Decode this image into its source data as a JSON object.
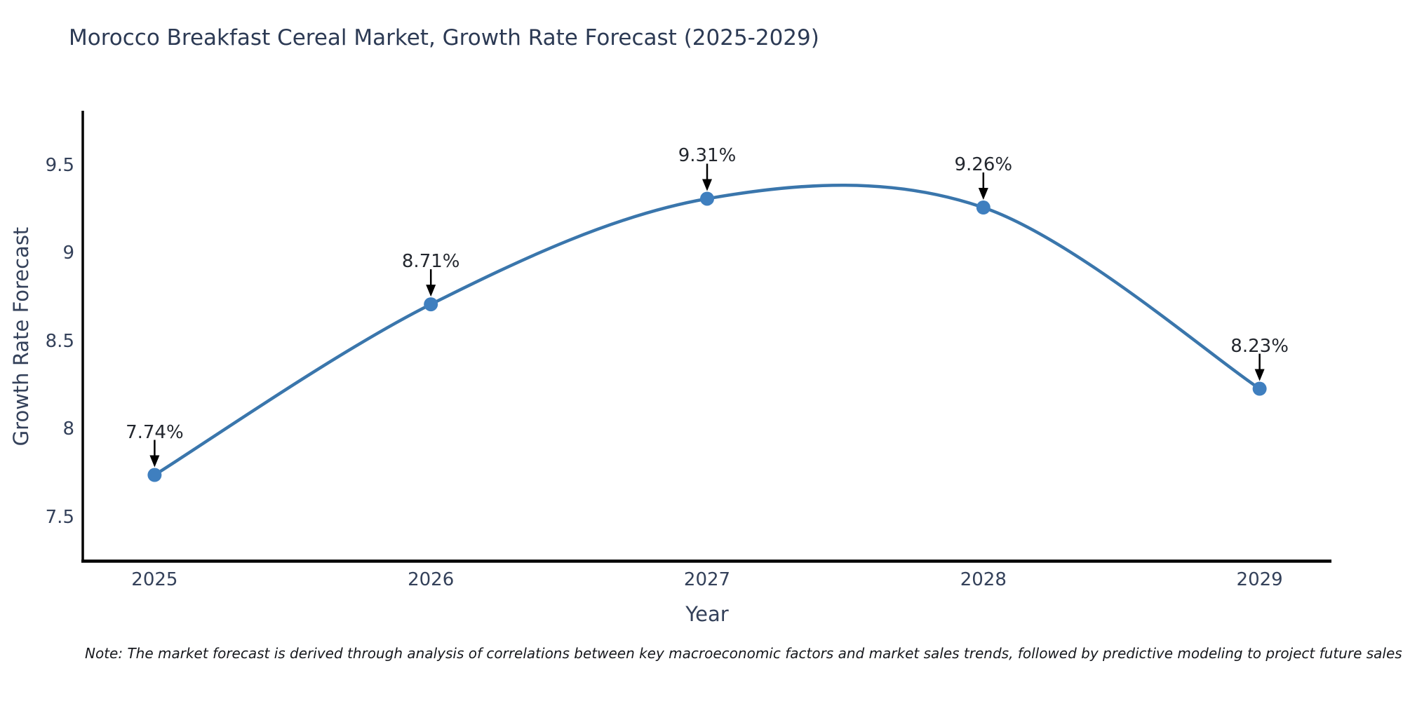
{
  "figure": {
    "note": "Note: The market forecast is derived through analysis of correlations between key macroeconomic factors and market sales trends, followed by predictive modeling to project future sales"
  },
  "chart_data": {
    "type": "line",
    "title": "Morocco Breakfast Cereal Market, Growth Rate Forecast (2025-2029)",
    "xlabel": "Year",
    "ylabel": "Growth Rate Forecast",
    "x": [
      2025,
      2026,
      2027,
      2028,
      2029
    ],
    "values": [
      7.74,
      8.71,
      9.31,
      9.26,
      8.23
    ],
    "point_labels": [
      "7.74%",
      "8.71%",
      "9.31%",
      "9.26%",
      "8.23%"
    ],
    "xticks": [
      2025,
      2026,
      2027,
      2028,
      2029
    ],
    "yticks": [
      7.5,
      8,
      8.5,
      9,
      9.5
    ],
    "xlim": [
      2024.74,
      2029.26
    ],
    "ylim": [
      7.25,
      9.81
    ],
    "grid": false,
    "legend": "none",
    "line_shape": "spline",
    "colors": {
      "line": "#3a76ac",
      "marker": "#3f7fbf",
      "axis": "#000000",
      "annotation_arrow": "#000000",
      "tick_text": "#34415a",
      "annotation_text": "#23272e"
    }
  }
}
